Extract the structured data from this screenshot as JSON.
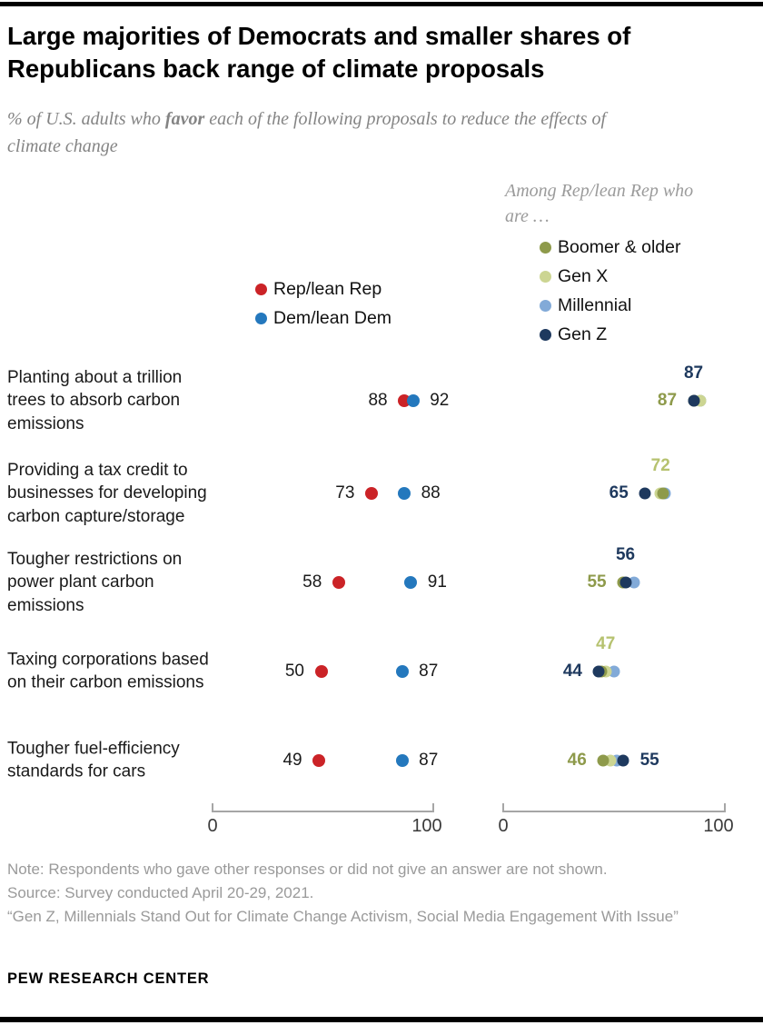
{
  "header": {
    "title": "Large majorities of Democrats and smaller shares of Republicans back range of climate proposals",
    "subtitle_prefix": "% of U.S. adults who ",
    "subtitle_bold": "favor",
    "subtitle_suffix": " each of the following proposals to reduce the effects of climate change"
  },
  "legend": {
    "party": [
      {
        "key": "rep",
        "label": "Rep/lean Rep",
        "color": "#cb2327"
      },
      {
        "key": "dem",
        "label": "Dem/lean Dem",
        "color": "#2478bd"
      }
    ],
    "generation_header": "Among Rep/lean Rep who are …",
    "generation": [
      {
        "key": "boomer",
        "label": "Boomer & older",
        "color": "#8e9a4b",
        "label_color": "#8e9a4b"
      },
      {
        "key": "genx",
        "label": "Gen X",
        "color": "#ccd592",
        "label_color": "#b6c26f"
      },
      {
        "key": "millennial",
        "label": "Millennial",
        "color": "#82aad8",
        "label_color": "#82aad8"
      },
      {
        "key": "genz",
        "label": "Gen Z",
        "color": "#1e395e",
        "label_color": "#1e395e"
      }
    ]
  },
  "chart_data": {
    "type": "scatter",
    "title": "Large majorities of Democrats and smaller shares of Republicans back range of climate proposals",
    "subtitle": "% of U.S. adults who favor each of the following proposals to reduce the effects of climate change",
    "categories": [
      "Planting about a trillion trees to absorb carbon emissions",
      "Providing a tax credit to businesses for developing carbon capture/storage",
      "Tougher restrictions on power plant carbon emissions",
      "Taxing corporations based on their carbon emissions",
      "Tougher fuel-efficiency standards for cars"
    ],
    "left_chart": {
      "xlim": [
        0,
        100
      ],
      "series": [
        {
          "name": "Rep/lean Rep",
          "key": "rep",
          "color": "#cb2327",
          "values": [
            88,
            73,
            58,
            50,
            49
          ]
        },
        {
          "name": "Dem/lean Dem",
          "key": "dem",
          "color": "#2478bd",
          "values": [
            92,
            88,
            91,
            87,
            87
          ]
        }
      ]
    },
    "right_chart": {
      "xlim": [
        0,
        100
      ],
      "subtitle": "Among Rep/lean Rep who are …",
      "series": [
        {
          "name": "Boomer & older",
          "key": "boomer",
          "values": [
            87,
            73,
            55,
            45,
            46
          ]
        },
        {
          "name": "Gen X",
          "key": "genx",
          "values": [
            90,
            72,
            55,
            47,
            49
          ]
        },
        {
          "name": "Millennial",
          "key": "millennial",
          "values": [
            90,
            74,
            60,
            51,
            52
          ]
        },
        {
          "name": "Gen Z",
          "key": "genz",
          "values": [
            87,
            65,
            56,
            44,
            55
          ]
        }
      ],
      "labeled_values": [
        [
          {
            "series": "genz",
            "value": 87,
            "pos": "above"
          },
          {
            "series": "boomer",
            "value": 87,
            "pos": "left"
          }
        ],
        [
          {
            "series": "genx",
            "value": 72,
            "pos": "above"
          },
          {
            "series": "genz",
            "value": 65,
            "pos": "left"
          }
        ],
        [
          {
            "series": "genz",
            "value": 56,
            "pos": "above"
          },
          {
            "series": "boomer",
            "value": 55,
            "pos": "left"
          }
        ],
        [
          {
            "series": "genx",
            "value": 47,
            "pos": "above"
          },
          {
            "series": "genz",
            "value": 44,
            "pos": "left"
          }
        ],
        [
          {
            "series": "boomer",
            "value": 46,
            "pos": "left"
          },
          {
            "series": "genz",
            "value": 55,
            "pos": "right"
          }
        ]
      ]
    }
  },
  "axes": {
    "left": {
      "min": "0",
      "max": "100"
    },
    "right": {
      "min": "0",
      "max": "100"
    }
  },
  "footer": {
    "note": "Note: Respondents who gave other responses or did not give an answer are not shown.",
    "source": "Source: Survey conducted April 20-29, 2021.",
    "report": "“Gen Z, Millennials Stand Out for Climate Change Activism, Social Media Engagement With Issue”",
    "brand": "PEW RESEARCH CENTER"
  }
}
